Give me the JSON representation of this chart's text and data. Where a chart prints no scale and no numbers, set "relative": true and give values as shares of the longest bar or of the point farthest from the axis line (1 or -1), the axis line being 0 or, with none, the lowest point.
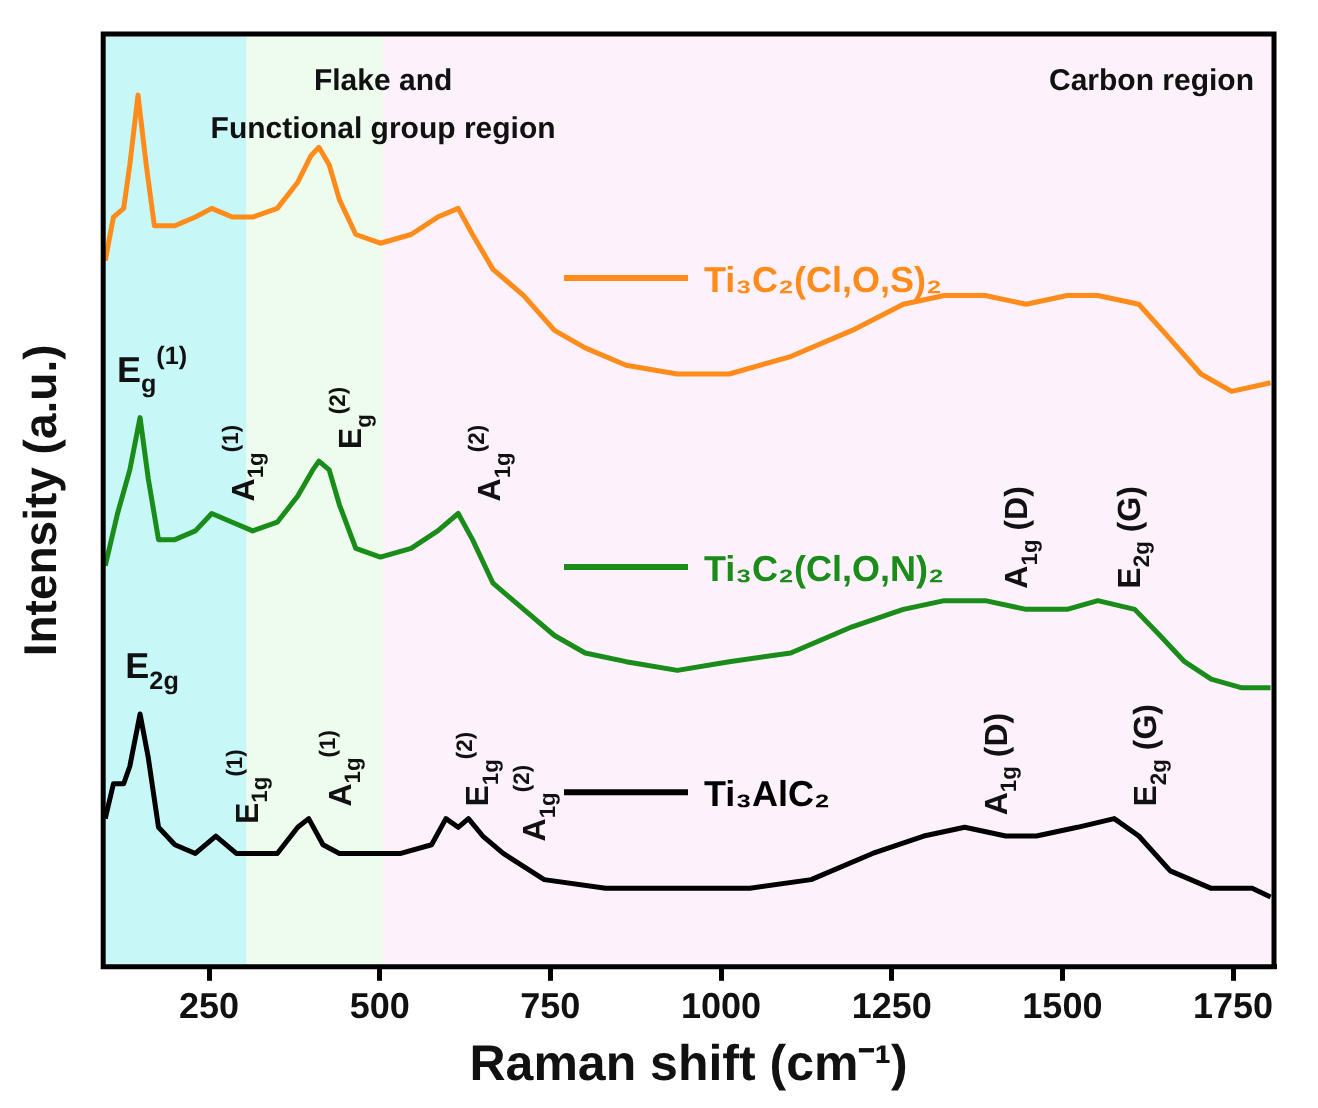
{
  "chart_data": {
    "type": "line",
    "relative": true,
    "legend": "right",
    "xlabel": "Raman shift (cm⁻¹)",
    "ylabel": "Intensity (a.u.)",
    "xlim": [
      95,
      1810
    ],
    "xticks": [
      250,
      500,
      750,
      1000,
      1250,
      1500,
      1750
    ],
    "series": [
      {
        "name": "Ti₃C₂(Cl,O,S)₂",
        "color": "#ff8c1a",
        "x": [
          98,
          110,
          125,
          134,
          146,
          158,
          170,
          200,
          230,
          254,
          284,
          314,
          350,
          380,
          399,
          411,
          426,
          441,
          465,
          501,
          546,
          585,
          615,
          636,
          666,
          711,
          756,
          801,
          861,
          936,
          1012,
          1102,
          1192,
          1267,
          1327,
          1387,
          1447,
          1507,
          1552,
          1612,
          1658,
          1703,
          1748,
          1805
        ],
        "values": [
          0.81,
          0.86,
          0.87,
          0.92,
          1,
          0.92,
          0.85,
          0.85,
          0.86,
          0.87,
          0.86,
          0.86,
          0.87,
          0.9,
          0.93,
          0.94,
          0.92,
          0.88,
          0.84,
          0.83,
          0.84,
          0.86,
          0.87,
          0.84,
          0.8,
          0.77,
          0.73,
          0.71,
          0.69,
          0.68,
          0.68,
          0.7,
          0.73,
          0.76,
          0.77,
          0.77,
          0.76,
          0.77,
          0.77,
          0.76,
          0.72,
          0.68,
          0.66,
          0.67
        ]
      },
      {
        "name": "Ti₃C₂(Cl,O,N)₂",
        "color": "#1a8c1a",
        "x": [
          98,
          116,
          134,
          149,
          161,
          176,
          200,
          230,
          254,
          284,
          314,
          350,
          380,
          402,
          411,
          426,
          441,
          465,
          501,
          546,
          585,
          615,
          636,
          666,
          711,
          756,
          801,
          861,
          936,
          1012,
          1102,
          1192,
          1267,
          1327,
          1387,
          1447,
          1507,
          1552,
          1606,
          1643,
          1679,
          1718,
          1763,
          1805
        ],
        "values": [
          0.46,
          0.52,
          0.57,
          0.63,
          0.56,
          0.49,
          0.49,
          0.5,
          0.52,
          0.51,
          0.5,
          0.51,
          0.54,
          0.57,
          0.58,
          0.57,
          0.53,
          0.48,
          0.47,
          0.48,
          0.5,
          0.52,
          0.49,
          0.44,
          0.41,
          0.38,
          0.36,
          0.35,
          0.34,
          0.35,
          0.36,
          0.39,
          0.41,
          0.42,
          0.42,
          0.41,
          0.41,
          0.42,
          0.41,
          0.38,
          0.35,
          0.33,
          0.32,
          0.32
        ]
      },
      {
        "name": "Ti₃AlC₂",
        "color": "#000000",
        "x": [
          98,
          110,
          125,
          134,
          149,
          161,
          176,
          200,
          230,
          260,
          290,
          320,
          350,
          380,
          396,
          417,
          441,
          486,
          531,
          576,
          597,
          615,
          630,
          651,
          681,
          741,
          831,
          936,
          1042,
          1132,
          1222,
          1297,
          1357,
          1417,
          1462,
          1522,
          1576,
          1612,
          1658,
          1718,
          1778,
          1805
        ],
        "values": [
          0.17,
          0.21,
          0.21,
          0.23,
          0.29,
          0.24,
          0.16,
          0.14,
          0.13,
          0.15,
          0.13,
          0.13,
          0.13,
          0.16,
          0.17,
          0.14,
          0.13,
          0.13,
          0.13,
          0.14,
          0.17,
          0.16,
          0.17,
          0.15,
          0.13,
          0.1,
          0.09,
          0.09,
          0.09,
          0.1,
          0.13,
          0.15,
          0.16,
          0.15,
          0.15,
          0.16,
          0.17,
          0.15,
          0.11,
          0.09,
          0.09,
          0.08
        ]
      }
    ],
    "bands": [
      {
        "axis": "x",
        "from": 95,
        "to": 305,
        "color": "#c8f7f7"
      },
      {
        "axis": "x",
        "from": 305,
        "to": 505,
        "color": "#eefcee",
        "label": "Flake and\nFunctional group region"
      },
      {
        "axis": "x",
        "from": 505,
        "to": 1810,
        "color": "#fdf2fc",
        "label": "Carbon region"
      }
    ],
    "annotations": [
      {
        "text": "E$_{g}$$^{(1)}$",
        "x": 149,
        "y": 0.63
      },
      {
        "text": "A$_{1g}$$^{(1)}$",
        "x": 254,
        "y": 0.52
      },
      {
        "text": "E$_{g}$$^{(2)}$",
        "x": 411,
        "y": 0.58
      },
      {
        "text": "A$_{1g}$$^{(2)}$",
        "x": 615,
        "y": 0.52
      },
      {
        "text": "A$_{1g}$ (D)",
        "x": 1387,
        "y": 0.42
      },
      {
        "text": "E$_{2g}$ (G)",
        "x": 1552,
        "y": 0.42
      },
      {
        "text": "E$_{2g}$",
        "x": 149,
        "y": 0.29
      },
      {
        "text": "E$_{1g}$$^{(1)}$",
        "x": 260,
        "y": 0.15
      },
      {
        "text": "A$_{1g}$$^{(1)}$",
        "x": 396,
        "y": 0.17
      },
      {
        "text": "E$_{1g}$$^{(2)}$",
        "x": 597,
        "y": 0.17
      },
      {
        "text": "A$_{1g}$$^{(2)}$",
        "x": 681,
        "y": 0.13
      },
      {
        "text": "A$_{1g}$ (D)",
        "x": 1357,
        "y": 0.16
      },
      {
        "text": "E$_{2g}$ (G)",
        "x": 1576,
        "y": 0.17
      }
    ]
  }
}
